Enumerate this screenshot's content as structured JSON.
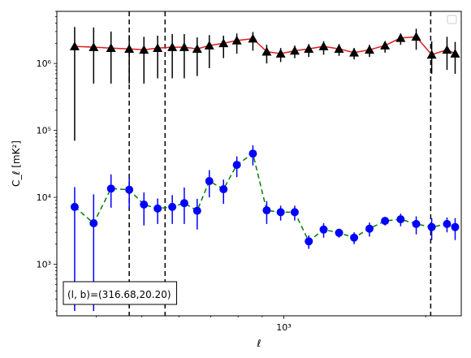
{
  "chart_data": {
    "type": "scatter",
    "title": "",
    "xlabel": "ℓ",
    "ylabel": "C_ℓ  [mK²]",
    "xscale": "log",
    "yscale": "log",
    "xlim": [
      330,
      2380
    ],
    "ylim": [
      170,
      6000000
    ],
    "x_tick_labels": [
      {
        "value": 1000,
        "label": "10³"
      }
    ],
    "y_tick_labels": [
      {
        "value": 1000,
        "label": "10³"
      },
      {
        "value": 10000,
        "label": "10⁴"
      },
      {
        "value": 100000,
        "label": "10⁵"
      },
      {
        "value": 1000000,
        "label": "10⁶"
      }
    ],
    "grid": false,
    "legend": {
      "placement": "top-right",
      "entries": []
    },
    "annotation": {
      "text": "(l, b)=(316.68,20.20)",
      "placement": "bottom-left"
    },
    "vertical_lines": [
      {
        "x": 470,
        "style": "dashed",
        "color": "#000000"
      },
      {
        "x": 560,
        "style": "dashed",
        "color": "#000000"
      },
      {
        "x": 2050,
        "style": "dashed",
        "color": "#000000"
      }
    ],
    "series": [
      {
        "marker": "triangle",
        "marker_color": "#000000",
        "line_color": "#e41a1c",
        "line_style": "solid",
        "errorbar_color": "#000000",
        "x": [
          360,
          395,
          430,
          470,
          505,
          540,
          580,
          615,
          655,
          695,
          745,
          795,
          860,
          920,
          985,
          1055,
          1130,
          1215,
          1310,
          1410,
          1520,
          1640,
          1770,
          1910,
          2060,
          2220,
          2310
        ],
        "y": [
          1800000,
          1750000,
          1700000,
          1650000,
          1600000,
          1700000,
          1750000,
          1750000,
          1650000,
          1850000,
          2000000,
          2200000,
          2350000,
          1500000,
          1400000,
          1550000,
          1650000,
          1800000,
          1650000,
          1450000,
          1600000,
          1850000,
          2400000,
          2500000,
          1350000,
          1600000,
          1400000
        ],
        "y_err_low": [
          1730000,
          1250000,
          1200000,
          1150000,
          1100000,
          1100000,
          1150000,
          1150000,
          1000000,
          1000000,
          800000,
          800000,
          800000,
          500000,
          350000,
          350000,
          400000,
          450000,
          350000,
          300000,
          350000,
          400000,
          500000,
          900000,
          650000,
          800000,
          700000
        ],
        "y_err_high": [
          1700000,
          1700000,
          1300000,
          1000000,
          900000,
          900000,
          1000000,
          1000000,
          800000,
          800000,
          600000,
          600000,
          600000,
          400000,
          300000,
          300000,
          300000,
          350000,
          300000,
          250000,
          300000,
          300000,
          400000,
          800000,
          800000,
          900000,
          700000
        ]
      },
      {
        "marker": "circle",
        "marker_color": "#0000ff",
        "line_color": "#008000",
        "line_style": "dashed",
        "errorbar_color": "#0000ff",
        "x": [
          360,
          395,
          430,
          470,
          505,
          540,
          580,
          615,
          655,
          695,
          745,
          795,
          860,
          920,
          985,
          1055,
          1130,
          1215,
          1310,
          1410,
          1520,
          1640,
          1770,
          1910,
          2060,
          2220,
          2310
        ],
        "y": [
          7200,
          4100,
          13500,
          13000,
          7800,
          6800,
          7200,
          8200,
          6300,
          17500,
          13200,
          30500,
          45000,
          6400,
          6000,
          6000,
          2200,
          3300,
          2950,
          2500,
          3400,
          4450,
          4700,
          4000,
          3600,
          4000,
          3600
        ],
        "y_err_low": [
          7000,
          3900,
          6500,
          6000,
          4000,
          2800,
          3200,
          4200,
          3000,
          7500,
          5200,
          10500,
          15000,
          2400,
          1500,
          1500,
          500,
          800,
          450,
          500,
          800,
          650,
          1000,
          1200,
          1300,
          1000,
          1300
        ],
        "y_err_high": [
          7000,
          7000,
          8500,
          7000,
          4000,
          2800,
          3600,
          5800,
          3200,
          8000,
          5200,
          10500,
          15000,
          2400,
          1500,
          1500,
          500,
          800,
          450,
          500,
          800,
          650,
          1000,
          1200,
          1300,
          1000,
          1300
        ]
      }
    ]
  }
}
